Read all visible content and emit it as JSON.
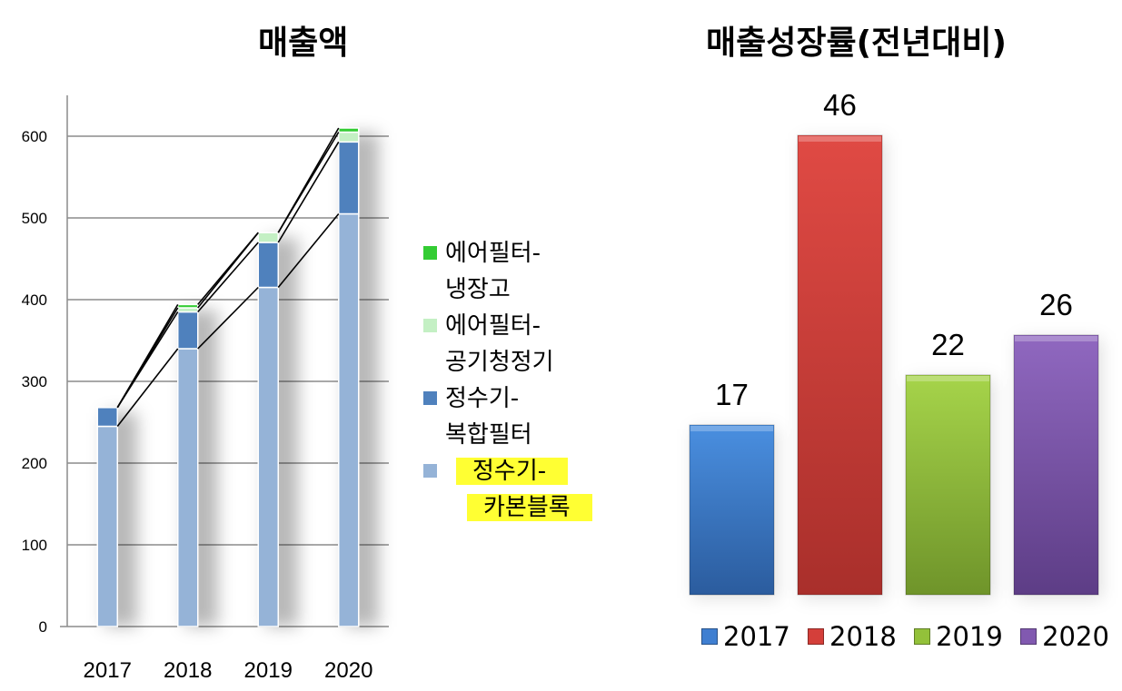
{
  "titles": {
    "left": "매출액",
    "right": "매출성장률(전년대비)"
  },
  "chart_data": [
    {
      "type": "bar",
      "stacked": true,
      "title": "매출액",
      "categories": [
        "2017",
        "2018",
        "2019",
        "2020"
      ],
      "series": [
        {
          "name": "정수기-카본블록",
          "color": "#95b3d7",
          "values": [
            245,
            340,
            415,
            505
          ]
        },
        {
          "name": "정수기-복합필터",
          "color": "#4f81bd",
          "values": [
            23,
            45,
            55,
            88
          ]
        },
        {
          "name": "에어필터-공기청정기",
          "color": "#c4f0c4",
          "values": [
            0,
            5,
            12,
            12
          ]
        },
        {
          "name": "에어필터-냉장고",
          "color": "#33cc33",
          "values": [
            0,
            4,
            0,
            5
          ]
        }
      ],
      "ylim": [
        0,
        650
      ],
      "yticks": [
        0,
        100,
        200,
        300,
        400,
        500,
        600
      ],
      "grid": true,
      "series_lines": true,
      "legend": "right"
    },
    {
      "type": "bar",
      "title": "매출성장률(전년대비)",
      "categories": [
        "2017",
        "2018",
        "2019",
        "2020"
      ],
      "values": [
        17,
        46,
        22,
        26
      ],
      "colors": [
        "#3f7fd1",
        "#d43f3a",
        "#93c13a",
        "#8159b0"
      ],
      "data_labels": [
        "17",
        "46",
        "22",
        "26"
      ],
      "ylim": [
        0,
        50
      ],
      "legend": "bottom"
    }
  ],
  "legend_left": [
    {
      "line1": "에어필터-",
      "line2": "냉장고",
      "color": "#33cc33",
      "highlight": false
    },
    {
      "line1": "에어필터-",
      "line2": "공기청정기",
      "color": "#c4f0c4",
      "highlight": false
    },
    {
      "line1": "정수기-",
      "line2": "복합필터",
      "color": "#4f81bd",
      "highlight": false
    },
    {
      "line1": "정수기-",
      "line2": "카본블록",
      "color": "#95b3d7",
      "highlight": true
    }
  ]
}
